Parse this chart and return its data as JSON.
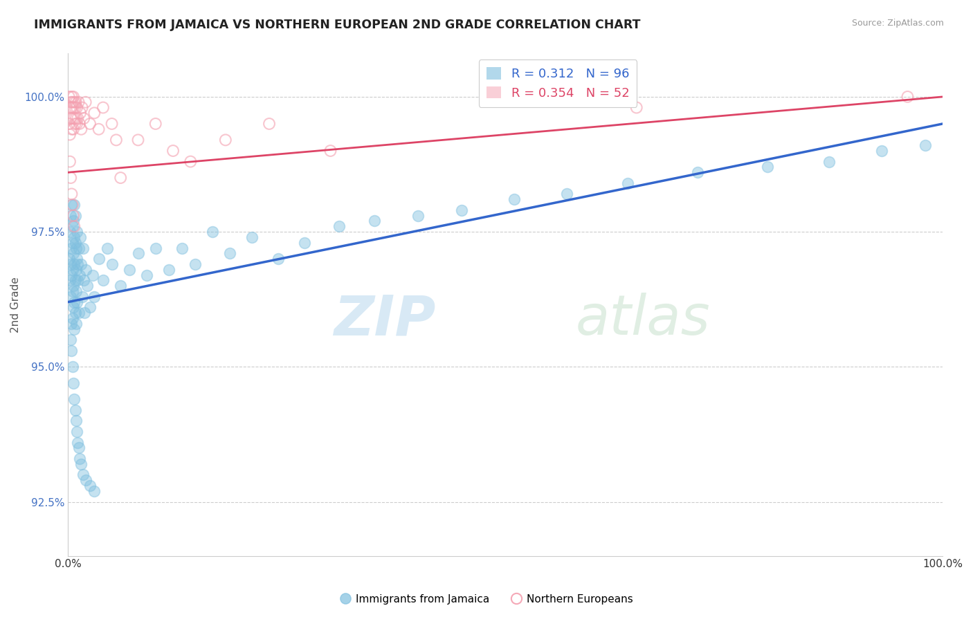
{
  "title": "IMMIGRANTS FROM JAMAICA VS NORTHERN EUROPEAN 2ND GRADE CORRELATION CHART",
  "source": "Source: ZipAtlas.com",
  "ylabel": "2nd Grade",
  "xlim": [
    0.0,
    1.0
  ],
  "ylim": [
    0.915,
    1.008
  ],
  "yticks": [
    0.925,
    0.95,
    0.975,
    1.0
  ],
  "ytick_labels": [
    "92.5%",
    "95.0%",
    "97.5%",
    "100.0%"
  ],
  "xticks": [
    0.0,
    0.25,
    0.5,
    0.75,
    1.0
  ],
  "xtick_labels": [
    "0.0%",
    "",
    "",
    "",
    "100.0%"
  ],
  "legend_r_blue": "R = 0.312",
  "legend_n_blue": "N = 96",
  "legend_r_pink": "R = 0.354",
  "legend_n_pink": "N = 52",
  "blue_color": "#7fbfdf",
  "pink_color": "#f4a0b0",
  "blue_line_color": "#3366cc",
  "pink_line_color": "#dd4466",
  "watermark_zip": "ZIP",
  "watermark_atlas": "atlas",
  "blue_x": [
    0.001,
    0.002,
    0.002,
    0.003,
    0.003,
    0.003,
    0.004,
    0.004,
    0.004,
    0.004,
    0.005,
    0.005,
    0.005,
    0.005,
    0.005,
    0.006,
    0.006,
    0.006,
    0.006,
    0.007,
    0.007,
    0.007,
    0.007,
    0.007,
    0.008,
    0.008,
    0.008,
    0.008,
    0.009,
    0.009,
    0.009,
    0.009,
    0.01,
    0.01,
    0.01,
    0.011,
    0.011,
    0.012,
    0.012,
    0.013,
    0.014,
    0.015,
    0.016,
    0.017,
    0.018,
    0.019,
    0.02,
    0.022,
    0.025,
    0.028,
    0.03,
    0.035,
    0.04,
    0.045,
    0.05,
    0.06,
    0.07,
    0.08,
    0.09,
    0.1,
    0.115,
    0.13,
    0.145,
    0.165,
    0.185,
    0.21,
    0.24,
    0.27,
    0.31,
    0.35,
    0.4,
    0.45,
    0.51,
    0.57,
    0.64,
    0.72,
    0.8,
    0.87,
    0.93,
    0.98,
    0.003,
    0.004,
    0.005,
    0.006,
    0.007,
    0.008,
    0.009,
    0.01,
    0.011,
    0.012,
    0.013,
    0.015,
    0.017,
    0.02,
    0.025,
    0.03
  ],
  "blue_y": [
    0.97,
    0.966,
    0.975,
    0.969,
    0.963,
    0.978,
    0.972,
    0.958,
    0.967,
    0.98,
    0.964,
    0.973,
    0.959,
    0.968,
    0.976,
    0.971,
    0.961,
    0.977,
    0.965,
    0.969,
    0.962,
    0.974,
    0.957,
    0.98,
    0.966,
    0.973,
    0.96,
    0.978,
    0.968,
    0.972,
    0.964,
    0.958,
    0.97,
    0.975,
    0.962,
    0.969,
    0.966,
    0.972,
    0.96,
    0.967,
    0.974,
    0.969,
    0.963,
    0.972,
    0.966,
    0.96,
    0.968,
    0.965,
    0.961,
    0.967,
    0.963,
    0.97,
    0.966,
    0.972,
    0.969,
    0.965,
    0.968,
    0.971,
    0.967,
    0.972,
    0.968,
    0.972,
    0.969,
    0.975,
    0.971,
    0.974,
    0.97,
    0.973,
    0.976,
    0.977,
    0.978,
    0.979,
    0.981,
    0.982,
    0.984,
    0.986,
    0.987,
    0.988,
    0.99,
    0.991,
    0.955,
    0.953,
    0.95,
    0.947,
    0.944,
    0.942,
    0.94,
    0.938,
    0.936,
    0.935,
    0.933,
    0.932,
    0.93,
    0.929,
    0.928,
    0.927
  ],
  "pink_x": [
    0.001,
    0.001,
    0.002,
    0.002,
    0.003,
    0.003,
    0.004,
    0.004,
    0.004,
    0.005,
    0.005,
    0.006,
    0.006,
    0.006,
    0.007,
    0.007,
    0.008,
    0.008,
    0.009,
    0.009,
    0.01,
    0.01,
    0.011,
    0.012,
    0.013,
    0.014,
    0.015,
    0.016,
    0.018,
    0.02,
    0.025,
    0.03,
    0.035,
    0.04,
    0.05,
    0.055,
    0.06,
    0.08,
    0.1,
    0.12,
    0.14,
    0.18,
    0.23,
    0.3,
    0.65,
    0.96,
    0.002,
    0.003,
    0.004,
    0.005,
    0.006,
    0.007
  ],
  "pink_y": [
    0.995,
    1.0,
    0.993,
    0.998,
    0.996,
    0.999,
    0.994,
    0.998,
    1.0,
    0.996,
    0.999,
    0.994,
    0.998,
    1.0,
    0.996,
    0.999,
    0.995,
    0.998,
    0.996,
    0.999,
    0.995,
    0.998,
    0.996,
    0.999,
    0.995,
    0.997,
    0.994,
    0.998,
    0.996,
    0.999,
    0.995,
    0.997,
    0.994,
    0.998,
    0.995,
    0.992,
    0.985,
    0.992,
    0.995,
    0.99,
    0.988,
    0.992,
    0.995,
    0.99,
    0.998,
    1.0,
    0.988,
    0.985,
    0.982,
    0.98,
    0.978,
    0.976
  ]
}
